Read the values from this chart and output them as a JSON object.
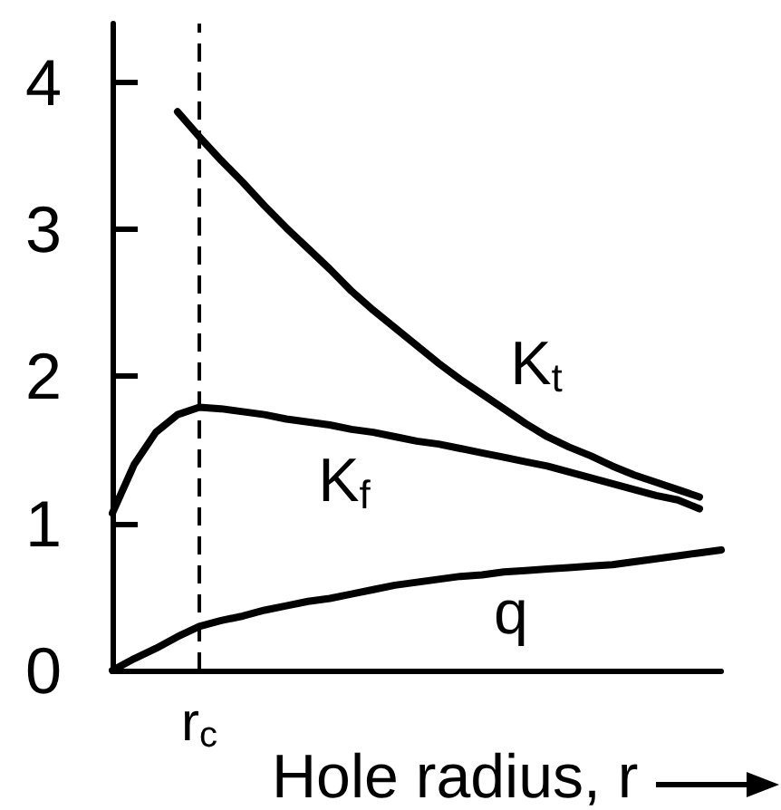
{
  "chart_data": {
    "type": "line",
    "xlabel": "Hole radius, r",
    "categories": [
      null,
      null,
      null,
      null,
      "r$_{c}$",
      null,
      null,
      null,
      null,
      null,
      null,
      null,
      null,
      null,
      null,
      null,
      null,
      null,
      null,
      null,
      null,
      null,
      null,
      null,
      null,
      null,
      null,
      null,
      null
    ],
    "series": [
      {
        "name": "K$_{t}$",
        "color": "#000000",
        "values": [
          null,
          null,
          null,
          3.8,
          3.63,
          3.47,
          3.32,
          3.16,
          3.01,
          2.87,
          2.73,
          2.58,
          2.45,
          2.33,
          2.21,
          2.09,
          1.98,
          1.88,
          1.78,
          1.68,
          1.59,
          1.52,
          1.46,
          1.39,
          1.33,
          1.28,
          1.23,
          1.18,
          null
        ]
      },
      {
        "name": "K$_{f}$",
        "color": "#000000",
        "values": [
          1.07,
          1.4,
          1.62,
          1.74,
          1.79,
          1.78,
          1.76,
          1.74,
          1.71,
          1.69,
          1.67,
          1.64,
          1.62,
          1.59,
          1.56,
          1.54,
          1.51,
          1.48,
          1.45,
          1.42,
          1.39,
          1.35,
          1.31,
          1.27,
          1.23,
          1.19,
          1.16,
          1.1,
          null
        ]
      },
      {
        "name": "q",
        "color": "#000000",
        "values": [
          0,
          0.08,
          0.15,
          0.23,
          0.3,
          0.34,
          0.37,
          0.41,
          0.44,
          0.47,
          0.49,
          0.52,
          0.55,
          0.58,
          0.6,
          0.62,
          0.64,
          0.65,
          0.67,
          0.68,
          0.69,
          0.7,
          0.71,
          0.72,
          0.74,
          0.76,
          0.78,
          0.8,
          0.82
        ]
      }
    ],
    "ylim": [
      0,
      4.4
    ],
    "yticks": [
      0,
      1,
      2,
      3,
      4
    ],
    "ref_lines": [
      {
        "axis": "x",
        "value": "r$_{c}$",
        "color": "#000000",
        "line_style": "dashed"
      }
    ]
  }
}
